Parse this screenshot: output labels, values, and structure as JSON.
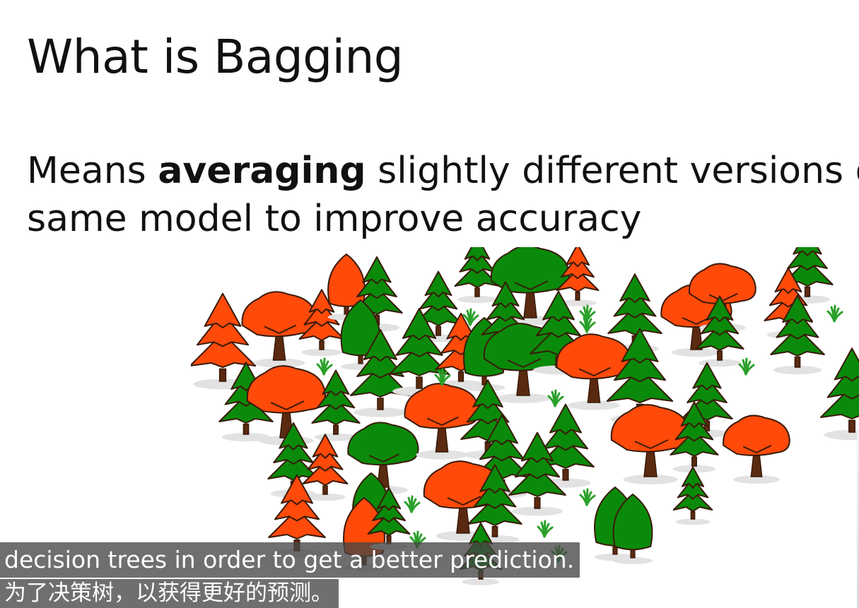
{
  "slide": {
    "title": "What is Bagging",
    "body_line1_prefix": "Means ",
    "body_line1_bold": "averaging",
    "body_line1_suffix": " slightly different versions of the",
    "body_line2": "same model to improve accuracy"
  },
  "illustration": {
    "icon": "forest-icon",
    "colors": {
      "green_tree": "#0a8a0a",
      "orange_tree": "#ff4a0a",
      "trunk": "#5a2a10",
      "outline": "#3a1a08",
      "shadow": "#e2e2e2",
      "grass": "#2aa02a"
    }
  },
  "subtitles": {
    "english": "decision trees in order to get a better prediction.",
    "chinese": "为了决策树，以获得更好的预测。"
  }
}
